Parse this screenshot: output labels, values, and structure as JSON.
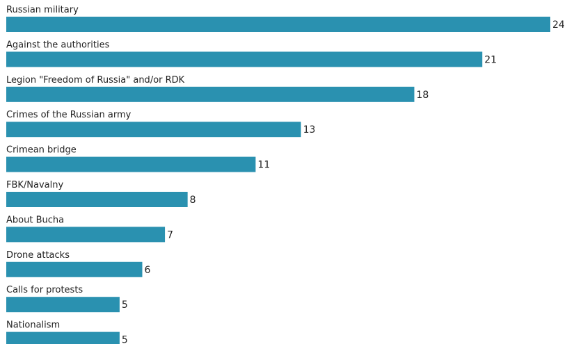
{
  "chart_data": {
    "type": "bar",
    "orientation": "horizontal",
    "categories": [
      "Russian military",
      "Against the authorities",
      "Legion \"Freedom of Russia\" and/or RDK",
      "Crimes of the Russian army",
      "Crimean bridge",
      "FBK/Navalny",
      "About Bucha",
      "Drone attacks",
      "Calls for protests",
      "Nationalism"
    ],
    "values": [
      24,
      21,
      18,
      13,
      11,
      8,
      7,
      6,
      5,
      5
    ],
    "xlim": [
      0,
      24
    ],
    "grid": false,
    "legend": "none",
    "bar_color": "#2a91b0",
    "data_labels": true
  }
}
